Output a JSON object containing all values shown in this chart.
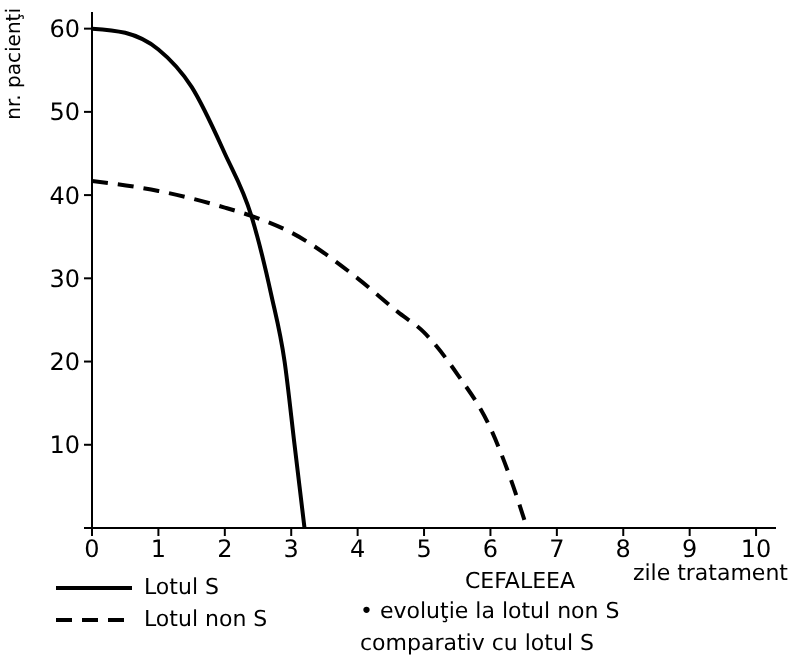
{
  "chart_data": {
    "type": "line",
    "title": "CEFALEEA",
    "xlabel": "zile tratament",
    "ylabel": "nr. pacienţi",
    "annotations": [
      "• evoluţie la lotul non S comparativ cu lotul S"
    ],
    "series": [
      {
        "name": "Lotul S",
        "color": "#000000",
        "line_style": "solid",
        "x": [
          0,
          0.5,
          1,
          1.5,
          2,
          2.4,
          2.7,
          2.9,
          3.05,
          3.2
        ],
        "values": [
          60,
          59.5,
          57.5,
          53,
          45,
          37.5,
          28,
          20,
          10,
          0
        ]
      },
      {
        "name": "Lotul non S",
        "color": "#000000",
        "line_style": "dashed",
        "x": [
          0,
          1,
          2,
          2.4,
          3,
          4,
          4.6,
          5,
          5.5,
          6,
          6.3,
          6.55
        ],
        "values": [
          41.7,
          40.5,
          38.5,
          37.5,
          35.5,
          30,
          26,
          23.5,
          18.5,
          12,
          6,
          0
        ]
      }
    ],
    "xlim": [
      0,
      10.3
    ],
    "xticks": [
      0,
      1,
      2,
      3,
      4,
      5,
      6,
      7,
      8,
      9,
      10
    ],
    "ylim": [
      0,
      62
    ],
    "yticks": [
      {
        "value": 0,
        "label": null
      },
      10,
      20,
      30,
      40,
      50,
      60
    ],
    "grid": false,
    "legend": "bottom left",
    "marker": "none"
  }
}
